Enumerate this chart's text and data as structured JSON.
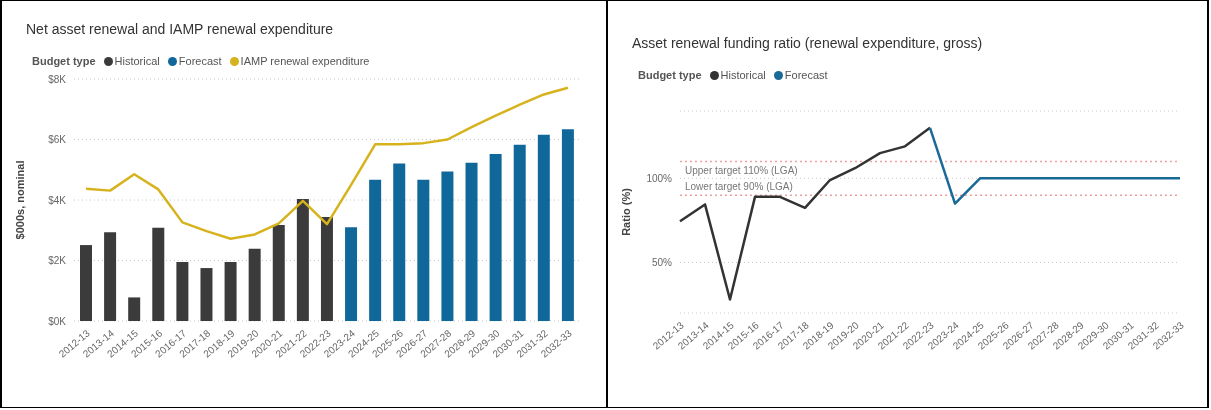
{
  "chart_data": [
    {
      "type": "bar",
      "title": "Net asset renewal and IAMP renewal expenditure",
      "legend_title": "Budget type",
      "legend": "top left",
      "ylabel": "$000s, nominal",
      "grid": "y",
      "marker": "none",
      "categories": [
        "2012-13",
        "2013-14",
        "2014-15",
        "2015-16",
        "2016-17",
        "2017-18",
        "2018-19",
        "2019-20",
        "2020-21",
        "2021-22",
        "2022-23",
        "2023-24",
        "2024-25",
        "2025-26",
        "2026-27",
        "2027-28",
        "2028-29",
        "2029-30",
        "2030-31",
        "2031-32",
        "2032-33"
      ],
      "ylim": [
        0,
        8
      ],
      "yticks": [
        {
          "value": 0,
          "label": "$0K"
        },
        {
          "value": 2,
          "label": "$2K"
        },
        {
          "value": 4,
          "label": "$4K"
        },
        {
          "value": 6,
          "label": "$6K"
        },
        {
          "value": 8,
          "label": "$8K"
        }
      ],
      "series": [
        {
          "name": "Historical",
          "type": "bar",
          "color": "#3b3b3b",
          "values": [
            2.51,
            2.93,
            0.78,
            3.08,
            1.95,
            1.75,
            1.95,
            2.39,
            3.17,
            4.03,
            3.44,
            null,
            null,
            null,
            null,
            null,
            null,
            null,
            null,
            null,
            null
          ]
        },
        {
          "name": "Forecast",
          "type": "bar",
          "color": "#10689a",
          "values": [
            null,
            null,
            null,
            null,
            null,
            null,
            null,
            null,
            null,
            null,
            null,
            3.1,
            4.67,
            5.21,
            4.67,
            4.94,
            5.23,
            5.52,
            5.83,
            6.16,
            6.34
          ]
        },
        {
          "name": "IAMP renewal expenditure",
          "type": "line",
          "color": "#d6b21c",
          "values": [
            4.37,
            4.31,
            4.85,
            4.35,
            3.26,
            2.97,
            2.72,
            2.86,
            3.23,
            3.97,
            3.2,
            4.5,
            5.84,
            5.84,
            5.88,
            6.0,
            6.41,
            6.79,
            7.15,
            7.49,
            7.71
          ]
        }
      ]
    },
    {
      "type": "line",
      "title": "Asset renewal funding ratio (renewal expenditure, gross)",
      "legend_title": "Budget type",
      "legend": "top left",
      "ylabel": "Ratio (%)",
      "grid": "y",
      "marker": "none",
      "line_style": "solid",
      "categories": [
        "2012-13",
        "2013-14",
        "2014-15",
        "2015-16",
        "2016-17",
        "2017-18",
        "2018-19",
        "2019-20",
        "2020-21",
        "2021-22",
        "2022-23",
        "2023-24",
        "2024-25",
        "2025-26",
        "2026-27",
        "2027-28",
        "2028-29",
        "2029-30",
        "2030-31",
        "2031-32",
        "2032-33"
      ],
      "ylim": [
        20,
        140
      ],
      "yticks": [
        {
          "value": 50,
          "label": "50%"
        },
        {
          "value": 100,
          "label": "100%"
        }
      ],
      "series": [
        {
          "name": "Historical",
          "color": "#333333",
          "values": [
            74.5,
            84.5,
            28,
            89,
            89,
            82.5,
            99,
            106,
            115,
            119,
            130,
            null,
            null,
            null,
            null,
            null,
            null,
            null,
            null,
            null,
            null
          ]
        },
        {
          "name": "Forecast",
          "color": "#1a6a98",
          "values": [
            null,
            null,
            null,
            null,
            null,
            null,
            null,
            null,
            null,
            null,
            130,
            85,
            100,
            100,
            100,
            100,
            100,
            100,
            100,
            100,
            100
          ]
        }
      ],
      "ref_lines": [
        {
          "axis": "y",
          "value": 110,
          "label": "Upper target 110% (LGA)",
          "color": "#f0a0a0",
          "line_style": "dotted"
        },
        {
          "axis": "y",
          "value": 90,
          "label": "Lower target 90% (LGA)",
          "color": "#f0a0a0",
          "line_style": "dotted"
        }
      ]
    }
  ]
}
